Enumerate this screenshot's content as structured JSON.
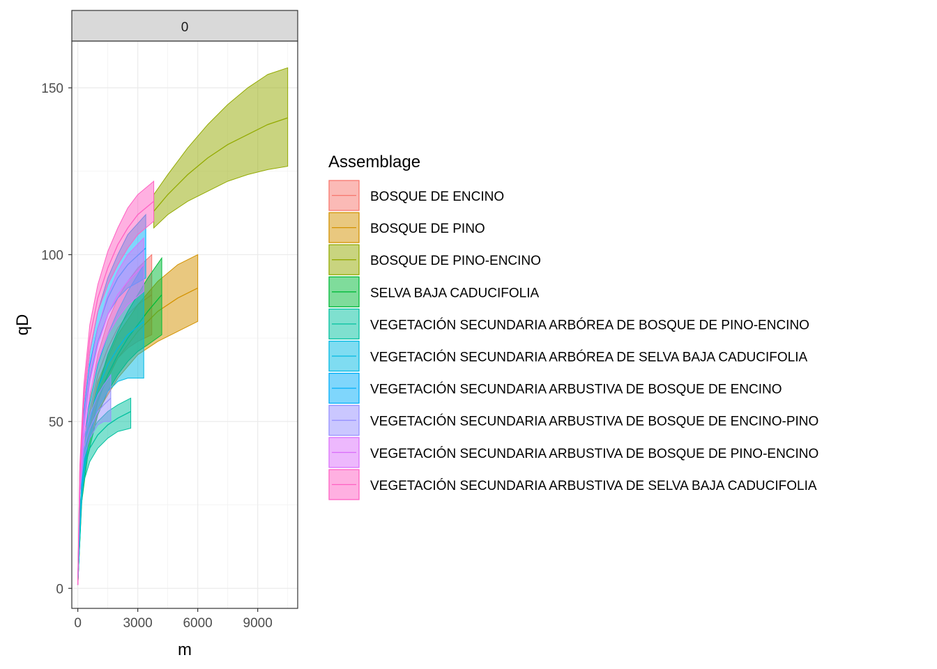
{
  "chart_data": {
    "type": "area",
    "facet_label": "0",
    "xlabel": "m",
    "ylabel": "qD",
    "xlim": [
      -300,
      11000
    ],
    "ylim": [
      -6,
      164
    ],
    "x_ticks": [
      0,
      3000,
      6000,
      9000
    ],
    "x_tick_labels": [
      "0",
      "3000",
      "6000",
      "9000"
    ],
    "y_ticks": [
      0,
      50,
      100,
      150
    ],
    "y_tick_labels": [
      "0",
      "50",
      "100",
      "150"
    ],
    "grid": true,
    "legend_position": "right",
    "legend_title": "Assemblage",
    "series": [
      {
        "name": "BOSQUE DE ENCINO",
        "color": "#F8766D",
        "x": [
          0,
          200,
          500,
          1000,
          1500,
          2000,
          2500,
          3000,
          3700
        ],
        "y": [
          1,
          33,
          50,
          64,
          72,
          78,
          82,
          85,
          88
        ],
        "lower": [
          1,
          31,
          46,
          58,
          64,
          69,
          72,
          74,
          76
        ],
        "upper": [
          1,
          35,
          54,
          70,
          80,
          87,
          92,
          96,
          100
        ]
      },
      {
        "name": "BOSQUE DE PINO",
        "color": "#D39200",
        "x": [
          0,
          200,
          500,
          1000,
          2000,
          3000,
          4000,
          5000,
          6000
        ],
        "y": [
          1,
          30,
          45,
          57,
          69,
          77,
          83,
          87,
          90
        ],
        "lower": [
          1,
          28,
          42,
          53,
          63,
          70,
          74,
          77,
          80
        ],
        "upper": [
          1,
          32,
          48,
          62,
          76,
          85,
          92,
          97,
          100
        ]
      },
      {
        "name": "BOSQUE DE PINO-ENCINO",
        "color": "#93AA00",
        "x": [
          3800,
          4500,
          5500,
          6500,
          7500,
          8500,
          9500,
          10500
        ],
        "y": [
          113,
          118,
          124,
          129,
          133,
          136,
          139,
          141
        ],
        "lower": [
          108,
          112,
          116,
          119,
          122,
          124,
          125.5,
          126.5
        ],
        "upper": [
          118,
          124,
          132,
          139,
          145,
          150,
          154,
          156
        ]
      },
      {
        "name": "SELVA BAJA CADUCIFOLIA",
        "color": "#00BA38",
        "x": [
          0,
          200,
          500,
          1000,
          1500,
          2000,
          2500,
          3000,
          3500,
          4200
        ],
        "y": [
          1,
          28,
          43,
          56,
          64,
          70,
          75,
          79,
          83,
          88
        ],
        "lower": [
          1,
          26,
          40,
          52,
          59,
          64,
          68,
          71,
          73,
          76
        ],
        "upper": [
          1,
          30,
          46,
          60,
          70,
          77,
          83,
          88,
          93,
          99
        ]
      },
      {
        "name": "VEGETACIÓN SECUNDARIA ARBÓREA DE BOSQUE DE PINO-ENCINO",
        "color": "#00C19F",
        "x": [
          0,
          100,
          300,
          600,
          1000,
          1500,
          2000,
          2650
        ],
        "y": [
          1,
          22,
          35,
          42,
          46,
          49,
          51,
          53
        ],
        "lower": [
          1,
          20,
          32,
          38,
          42,
          45,
          47,
          48
        ],
        "upper": [
          1,
          24,
          38,
          46,
          50,
          53,
          55,
          57
        ]
      },
      {
        "name": "VEGETACIÓN SECUNDARIA ARBÓREA DE SELVA BAJA CADUCIFOLIA",
        "color": "#00B9E3",
        "x": [
          0,
          200,
          500,
          1000,
          1500,
          2000,
          2500,
          3300
        ],
        "y": [
          1,
          30,
          48,
          60,
          67,
          72,
          76,
          80
        ],
        "lower": [
          1,
          28,
          43,
          54,
          59,
          62,
          63,
          63
        ],
        "upper": [
          1,
          33,
          53,
          67,
          76,
          83,
          89,
          97
        ]
      },
      {
        "name": "VEGETACIÓN SECUNDARIA ARBUSTIVA DE BOSQUE DE ENCINO",
        "color": "#00ADFA",
        "x": [
          0,
          100,
          300,
          600,
          1000,
          1500,
          2000,
          2500,
          3400
        ],
        "y": [
          1,
          32,
          52,
          67,
          78,
          87,
          93,
          97,
          102
        ],
        "lower": [
          1,
          30,
          49,
          63,
          74,
          82,
          87,
          90,
          93
        ],
        "upper": [
          1,
          34,
          55,
          71,
          83,
          93,
          100,
          106,
          112
        ]
      },
      {
        "name": "VEGETACIÓN SECUNDARIA ARBUSTIVA DE BOSQUE DE ENCINO-PINO",
        "color": "#9590FF",
        "x": [
          0,
          100,
          300,
          600,
          1000,
          1300,
          1650
        ],
        "y": [
          1,
          30,
          42,
          48,
          53,
          55,
          57
        ],
        "lower": [
          1,
          28,
          39,
          45,
          49,
          50,
          50
        ],
        "upper": [
          1,
          32,
          45,
          52,
          58,
          61,
          64
        ]
      },
      {
        "name": "VEGETACIÓN SECUNDARIA ARBUSTIVA DE BOSQUE DE PINO-ENCINO",
        "color": "#DB72FB",
        "x": [
          0,
          100,
          300,
          600,
          1000,
          1500,
          2000,
          2500,
          3300
        ],
        "y": [
          1,
          30,
          48,
          62,
          73,
          82,
          88,
          92,
          97
        ],
        "lower": [
          1,
          28,
          45,
          58,
          68,
          76,
          81,
          85,
          89
        ],
        "upper": [
          1,
          32,
          51,
          66,
          78,
          88,
          95,
          100,
          105
        ]
      },
      {
        "name": "VEGETACIÓN SECUNDARIA ARBUSTIVA DE SELVA BAJA CADUCIFOLIA",
        "color": "#FF61C3",
        "x": [
          0,
          100,
          300,
          600,
          1000,
          1500,
          2000,
          2500,
          3000,
          3800
        ],
        "y": [
          1,
          35,
          58,
          75,
          87,
          96,
          103,
          108,
          112,
          116
        ],
        "lower": [
          1,
          33,
          55,
          71,
          83,
          91,
          97,
          102,
          106,
          110
        ],
        "upper": [
          1,
          37,
          61,
          79,
          91,
          101,
          108,
          114,
          118,
          122
        ]
      }
    ]
  }
}
